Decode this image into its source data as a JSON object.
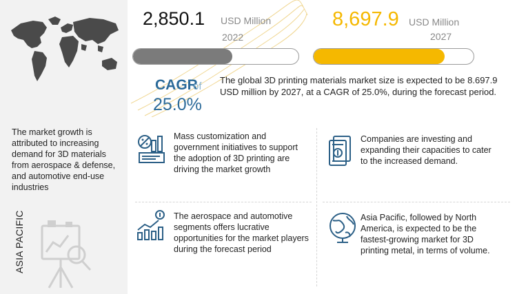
{
  "market": {
    "value_2022": "2,850.1",
    "unit_2022": "USD Million",
    "year_2022": "2022",
    "value_2027": "8,697.9",
    "unit_2027": "USD Million",
    "year_2027": "2027",
    "bar_2022_fraction": 0.6,
    "bar_2027_fraction": 0.82,
    "colors": {
      "value_2027": "#f5b800",
      "bar_2022": "#7b7b7b",
      "cagr": "#2b6a99"
    }
  },
  "cagr": {
    "label": "CAGR",
    "of": "of",
    "value": "25.0%",
    "summary": "The global 3D printing materials market size is expected to be 8.697.9 USD million by 2027, at a CAGR of 25.0%, during the forecast period."
  },
  "left": {
    "text": "The market growth is attributed to increasing demand for 3D materials from aerospace & defense, and automotive  end-use industries",
    "region": "ASIA PACIFIC"
  },
  "facts": [
    {
      "icon": "analytics-icon",
      "text": "Mass customization and government initiatives to support the adoption of 3D printing are driving the market growth"
    },
    {
      "icon": "money-stack-icon",
      "text": "Companies are investing and expanding their capacities to cater to the increased demand."
    },
    {
      "icon": "growth-chart-icon",
      "text": "The aerospace and automotive segments offers lucrative opportunities for the market players during the forecast period"
    },
    {
      "icon": "globe-icon",
      "text": "Asia Pacific, followed by North America, is expected to be the fastest-growing market for 3D printing metal, in terms of volume."
    }
  ]
}
